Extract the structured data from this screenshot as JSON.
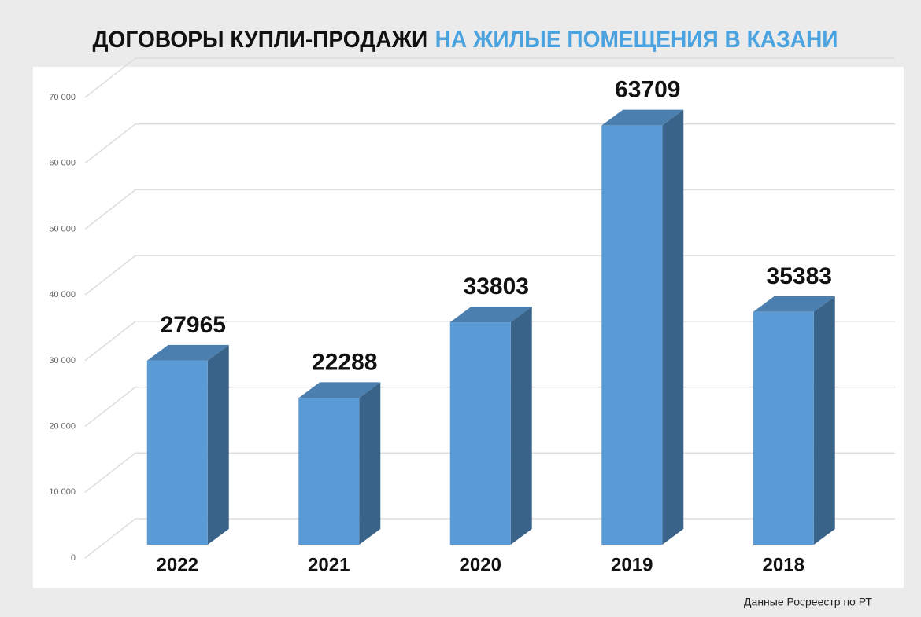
{
  "chart_data": {
    "type": "bar3d",
    "title": "ДОГОВОРЫ КУПЛИ-ПРОДАЖИ",
    "title_highlight": "НА ЖИЛЫЕ ПОМЕЩЕНИЯ В КАЗАНИ",
    "title_highlight_color": "#4aa3df",
    "source": "Данные Росреестр по РТ",
    "categories": [
      "2022",
      "2021",
      "2020",
      "2019",
      "2018"
    ],
    "values": [
      27965,
      22288,
      33803,
      63709,
      35383
    ],
    "color": "#5b9bd5",
    "ylim": [
      0,
      70000
    ],
    "yticks": [
      0,
      {
        "value": 10000,
        "label": "10 000"
      },
      {
        "value": 20000,
        "label": "20 000"
      },
      {
        "value": 30000,
        "label": "30 000"
      },
      {
        "value": 40000,
        "label": "40 000"
      },
      {
        "value": 50000,
        "label": "50 000"
      },
      {
        "value": 60000,
        "label": "60 000"
      },
      {
        "value": 70000,
        "label": "70 000"
      }
    ],
    "grid": true
  }
}
